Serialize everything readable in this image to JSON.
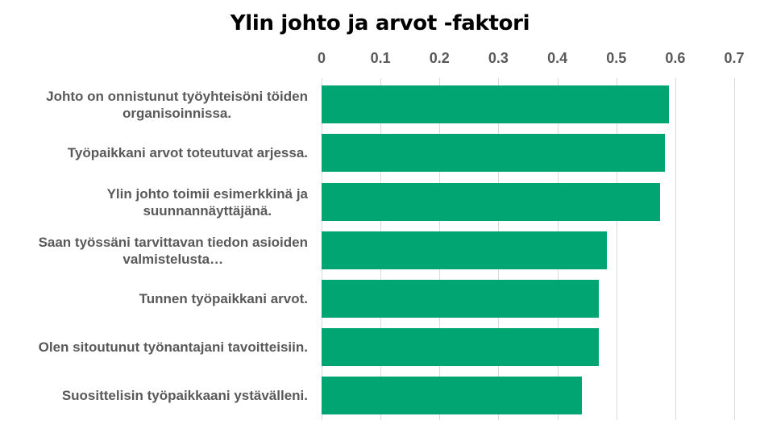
{
  "chart_data": {
    "type": "bar",
    "orientation": "horizontal",
    "title": "Ylin johto ja arvot -faktori",
    "xlabel": "",
    "ylabel": "",
    "xlim": [
      0,
      0.7
    ],
    "x_ticks": [
      "0",
      "0.1",
      "0.2",
      "0.3",
      "0.4",
      "0.5",
      "0.6",
      "0.7"
    ],
    "x_axis_position": "top",
    "grid": true,
    "legend": null,
    "bar_color": "#00A571",
    "categories": [
      "Johto on onnistunut työyhteisöni töiden organisoinnissa.",
      "Työpaikkani arvot toteutuvat arjessa.",
      "Ylin johto toimii esimerkkinä ja suunnannäyttäjänä.",
      "Saan työssäni tarvittavan tiedon asioiden valmistelusta…",
      "Tunnen työpaikkani arvot.",
      "Olen sitoutunut työnantajani tavoitteisiin.",
      "Suosittelisin työpaikkaani ystävälleni."
    ],
    "values": [
      0.589,
      0.582,
      0.574,
      0.484,
      0.47,
      0.47,
      0.441
    ]
  },
  "labels_display": [
    [
      "Johto on onnistunut työyhteisöni töiden",
      "organisoinnissa."
    ],
    [
      "Työpaikkani arvot toteutuvat arjessa."
    ],
    [
      "Ylin johto toimii esimerkkinä ja",
      "suunnannäyttäjänä."
    ],
    [
      "Saan työssäni tarvittavan tiedon asioiden",
      "valmistelusta…"
    ],
    [
      "Tunnen työpaikkani arvot."
    ],
    [
      "Olen sitoutunut työnantajani tavoitteisiin."
    ],
    [
      "Suosittelisin työpaikkaani ystävälleni."
    ]
  ]
}
